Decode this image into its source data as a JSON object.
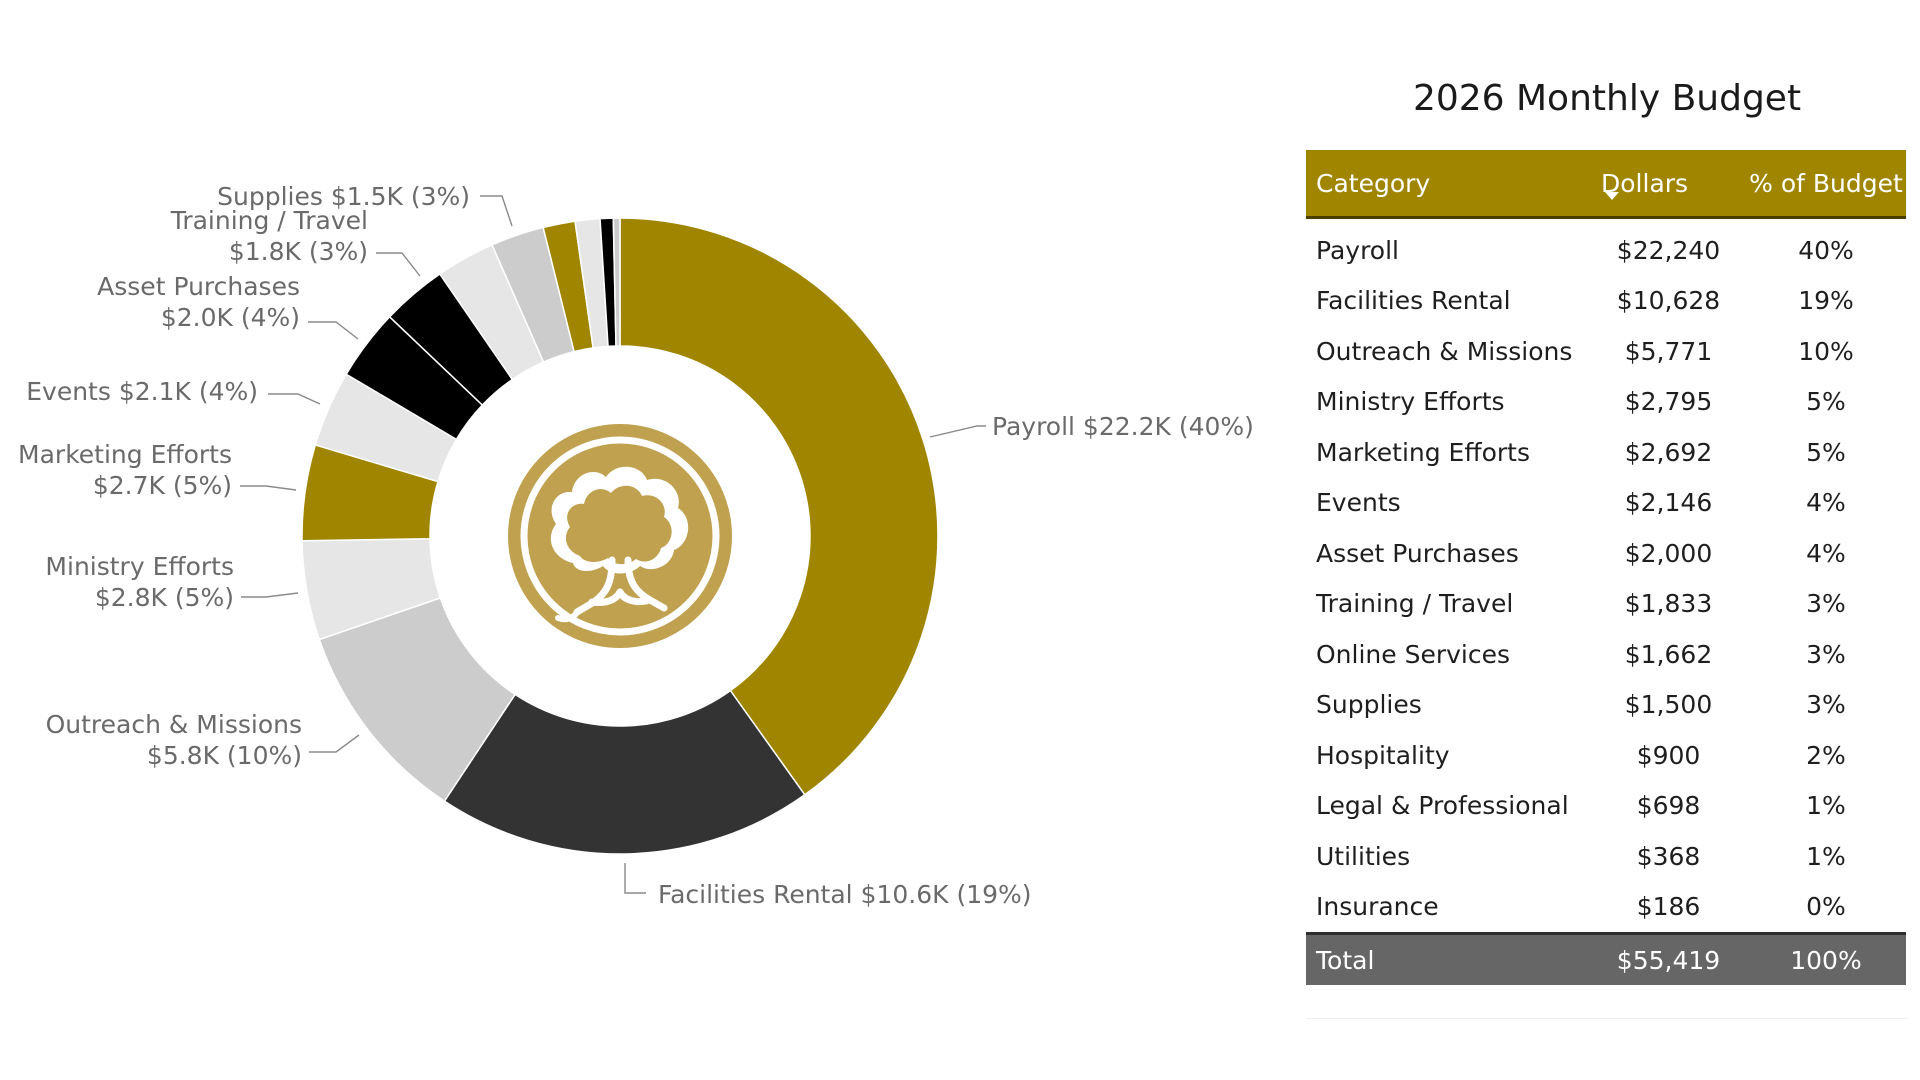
{
  "chart_data": {
    "type": "pie",
    "variant": "donut",
    "title": "2026 Monthly Budget",
    "center_icon": "tree-logo-icon",
    "slices": [
      {
        "category": "Payroll",
        "value": 22240,
        "label": "Payroll $22.2K (40%)",
        "color": "#a08600"
      },
      {
        "category": "Facilities Rental",
        "value": 10628,
        "label": "Facilities Rental $10.6K (19%)",
        "color": "#333333"
      },
      {
        "category": "Outreach & Missions",
        "value": 5771,
        "label": "Outreach & Missions\n$5.8K (10%)",
        "color": "#cccccc"
      },
      {
        "category": "Ministry Efforts",
        "value": 2795,
        "label": "Ministry Efforts\n$2.8K (5%)",
        "color": "#e6e6e6"
      },
      {
        "category": "Marketing Efforts",
        "value": 2692,
        "label": "Marketing Efforts\n$2.7K (5%)",
        "color": "#a08600"
      },
      {
        "category": "Events",
        "value": 2146,
        "label": "Events $2.1K (4%)",
        "color": "#e6e6e6"
      },
      {
        "category": "Asset Purchases",
        "value": 2000,
        "label": "Asset Purchases\n$2.0K (4%)",
        "color": "#000000"
      },
      {
        "category": "Training / Travel",
        "value": 1833,
        "label": "Training / Travel\n$1.8K (3%)",
        "color": "#000000"
      },
      {
        "category": "Online Services",
        "value": 1662,
        "label": "",
        "color": "#e6e6e6"
      },
      {
        "category": "Supplies",
        "value": 1500,
        "label": "Supplies $1.5K (3%)",
        "color": "#cccccc"
      },
      {
        "category": "Hospitality",
        "value": 900,
        "label": "",
        "color": "#a08600"
      },
      {
        "category": "Legal & Professional",
        "value": 698,
        "label": "",
        "color": "#e6e6e6"
      },
      {
        "category": "Utilities",
        "value": 368,
        "label": "",
        "color": "#000000"
      },
      {
        "category": "Insurance",
        "value": 186,
        "label": "",
        "color": "#cccccc"
      }
    ]
  },
  "table": {
    "title": "2026 Monthly Budget",
    "headers": {
      "category": "Category",
      "dollars": "Dollars",
      "percent": "% of Budget"
    },
    "sort_indicator": "sort-descending-icon",
    "rows": [
      {
        "category": "Payroll",
        "dollars": "$22,240",
        "percent": "40%"
      },
      {
        "category": "Facilities Rental",
        "dollars": "$10,628",
        "percent": "19%"
      },
      {
        "category": "Outreach & Missions",
        "dollars": "$5,771",
        "percent": "10%"
      },
      {
        "category": "Ministry Efforts",
        "dollars": "$2,795",
        "percent": "5%"
      },
      {
        "category": "Marketing Efforts",
        "dollars": "$2,692",
        "percent": "5%"
      },
      {
        "category": "Events",
        "dollars": "$2,146",
        "percent": "4%"
      },
      {
        "category": "Asset Purchases",
        "dollars": "$2,000",
        "percent": "4%"
      },
      {
        "category": "Training / Travel",
        "dollars": "$1,833",
        "percent": "3%"
      },
      {
        "category": "Online Services",
        "dollars": "$1,662",
        "percent": "3%"
      },
      {
        "category": "Supplies",
        "dollars": "$1,500",
        "percent": "3%"
      },
      {
        "category": "Hospitality",
        "dollars": "$900",
        "percent": "2%"
      },
      {
        "category": "Legal & Professional",
        "dollars": "$698",
        "percent": "1%"
      },
      {
        "category": "Utilities",
        "dollars": "$368",
        "percent": "1%"
      },
      {
        "category": "Insurance",
        "dollars": "$186",
        "percent": "0%"
      }
    ],
    "total": {
      "category": "Total",
      "dollars": "$55,419",
      "percent": "100%"
    }
  },
  "colors": {
    "gold": "#a08600",
    "icon_gold": "#bfa14f",
    "header_text": "#ffffff",
    "total_bg": "#666666"
  }
}
